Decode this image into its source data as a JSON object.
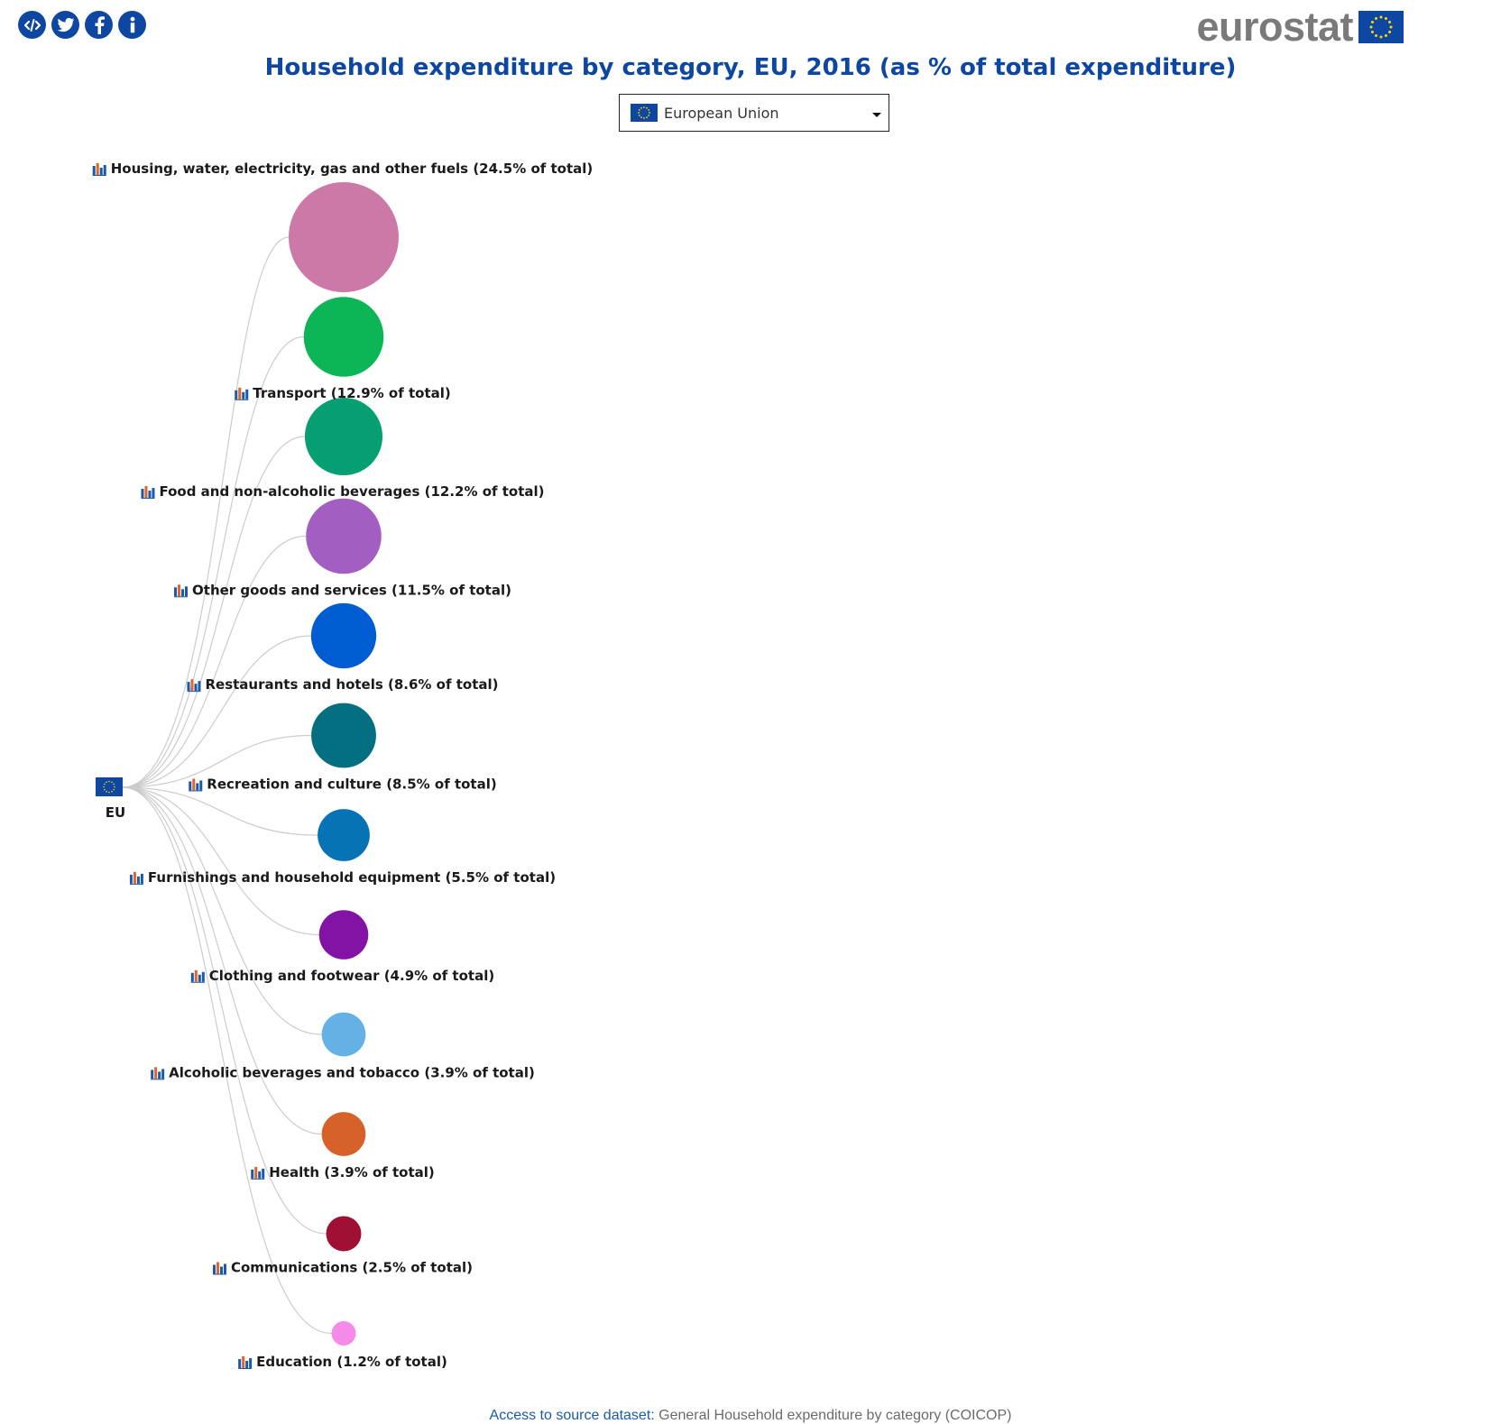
{
  "share_icons": [
    {
      "icon": "embed-code-icon"
    },
    {
      "icon": "twitter-icon"
    },
    {
      "icon": "facebook-icon"
    },
    {
      "icon": "info-icon"
    }
  ],
  "brand": {
    "name": "eurostat",
    "flag_icon": "eu-flag-icon"
  },
  "colors": {
    "brand_blue": "#0e47a1",
    "source_link": "#1b5aa8",
    "link_line": "#cccccc"
  },
  "title": "Household expenditure by category, EU, 2016 (as % of total expenditure)",
  "selector": {
    "selected": "European Union",
    "flag_icon": "eu-flag-icon"
  },
  "chart_data": {
    "type": "radial-tree",
    "root": {
      "label": "EU",
      "icon": "eu-flag-icon"
    },
    "categories": [
      {
        "name": "Housing, water, electricity, gas and other fuels",
        "value": 24.5,
        "label": "Housing, water, electricity, gas and other fuels (24.5% of total)",
        "color": "#cc79a7"
      },
      {
        "name": "Transport",
        "value": 12.9,
        "label": "Transport (12.9% of total)",
        "color": "#0cb556"
      },
      {
        "name": "Food and non-alcoholic beverages",
        "value": 12.2,
        "label": "Food and non-alcoholic beverages (12.2% of total)",
        "color": "#069e73"
      },
      {
        "name": "Other goods and services",
        "value": 11.5,
        "label": "Other goods and services (11.5% of total)",
        "color": "#a25fc1"
      },
      {
        "name": "Restaurants and hotels",
        "value": 8.6,
        "label": "Restaurants and hotels (8.6% of total)",
        "color": "#005cd1"
      },
      {
        "name": "Recreation and culture",
        "value": 8.5,
        "label": "Recreation and culture (8.5% of total)",
        "color": "#036f81"
      },
      {
        "name": "Furnishings and household equipment",
        "value": 5.5,
        "label": "Furnishings and household equipment (5.5% of total)",
        "color": "#0673b5"
      },
      {
        "name": "Clothing and footwear",
        "value": 4.9,
        "label": "Clothing and footwear (4.9% of total)",
        "color": "#8213a4"
      },
      {
        "name": "Alcoholic beverages and tobacco",
        "value": 3.9,
        "label": "Alcoholic beverages and tobacco (3.9% of total)",
        "color": "#63b1e5"
      },
      {
        "name": "Health",
        "value": 3.9,
        "label": "Health (3.9% of total)",
        "color": "#d76229"
      },
      {
        "name": "Communications",
        "value": 2.5,
        "label": "Communications (2.5% of total)",
        "color": "#a00f34"
      },
      {
        "name": "Education",
        "value": 1.2,
        "label": "Education (1.2% of total)",
        "color": "#f58ae9"
      }
    ]
  },
  "source": {
    "link_text": "Access to source dataset:",
    "dataset": " General Household expenditure by category (COICOP)"
  }
}
